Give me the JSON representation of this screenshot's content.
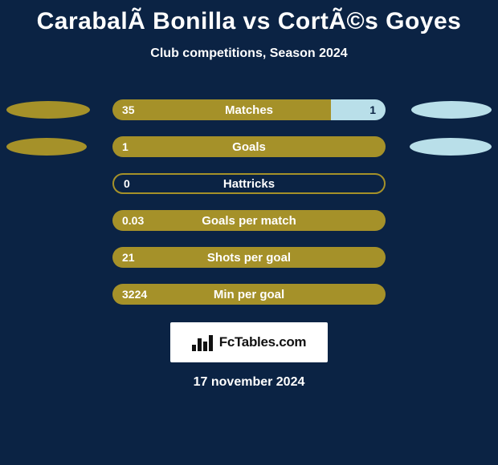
{
  "background_color": "#0b2344",
  "text_color": "#ffffff",
  "title": "CarabalÃ­ Bonilla vs CortÃ©s Goyes",
  "title_fontsize": 30,
  "subtitle": "Club competitions, Season 2024",
  "subtitle_fontsize": 16,
  "date": "17 november 2024",
  "logo_text": "FcTables.com",
  "logo_text_color": "#111111",
  "player_left_color": "#a59129",
  "player_right_color": "#b9dfe9",
  "ellipse_height": 22,
  "bar_track_width": 340,
  "bar_track_height": 26,
  "rows": [
    {
      "label": "Matches",
      "left_val": "35",
      "right_val": "1",
      "left_pct": 80,
      "right_pct": 20,
      "show_right_val": true,
      "ellipse_left_w": 104,
      "ellipse_right_w": 100
    },
    {
      "label": "Goals",
      "left_val": "1",
      "right_val": "",
      "left_pct": 100,
      "right_pct": 0,
      "show_right_val": false,
      "ellipse_left_w": 100,
      "ellipse_right_w": 102
    },
    {
      "label": "Hattricks",
      "left_val": "0",
      "right_val": "",
      "left_pct": 0,
      "right_pct": 0,
      "show_right_val": false,
      "ellipse_left_w": 0,
      "ellipse_right_w": 0
    },
    {
      "label": "Goals per match",
      "left_val": "0.03",
      "right_val": "",
      "left_pct": 100,
      "right_pct": 0,
      "show_right_val": false,
      "ellipse_left_w": 0,
      "ellipse_right_w": 0
    },
    {
      "label": "Shots per goal",
      "left_val": "21",
      "right_val": "",
      "left_pct": 100,
      "right_pct": 0,
      "show_right_val": false,
      "ellipse_left_w": 0,
      "ellipse_right_w": 0
    },
    {
      "label": "Min per goal",
      "left_val": "3224",
      "right_val": "",
      "left_pct": 100,
      "right_pct": 0,
      "show_right_val": false,
      "ellipse_left_w": 0,
      "ellipse_right_w": 0
    }
  ],
  "empty_track_border": "#a59129",
  "empty_track_bg": "#0b2344"
}
